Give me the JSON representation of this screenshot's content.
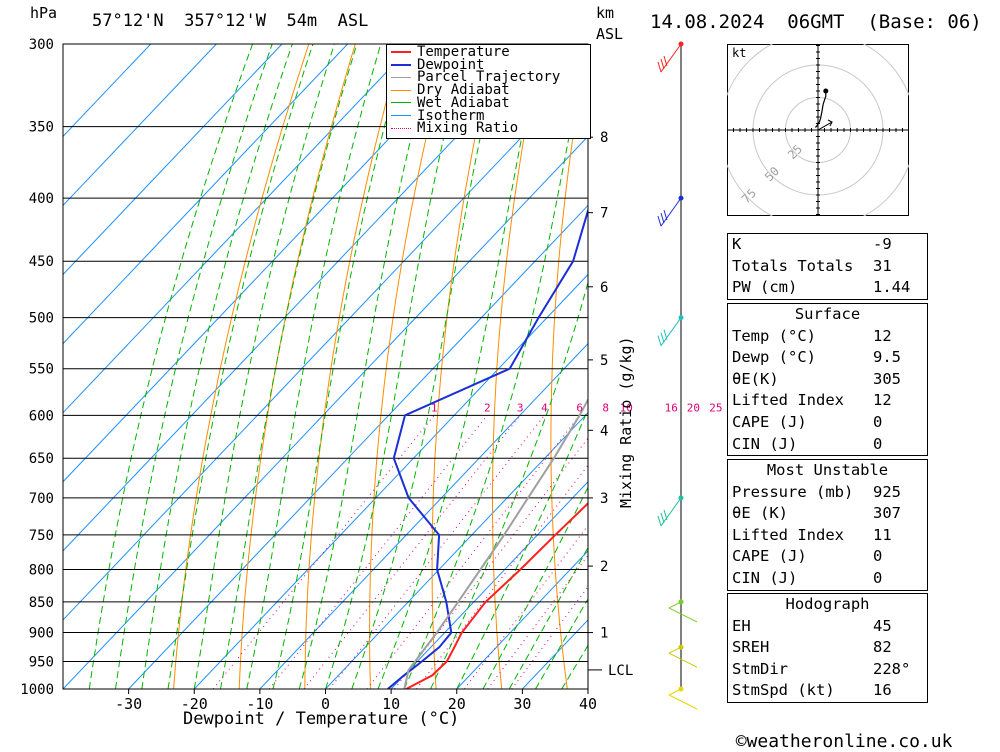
{
  "header": {
    "unit_left": "hPa",
    "location": "57°12'N  357°12'W  54m  ASL",
    "unit_km": "km",
    "unit_asl": "ASL",
    "datetime": "14.08.2024  06GMT  (Base: 06)"
  },
  "legend": [
    "Temperature",
    "Dewpoint",
    "Parcel Trajectory",
    "Dry Adiabat",
    "Wet Adiabat",
    "Isotherm",
    "Mixing Ratio"
  ],
  "colors": {
    "temperature": "#ff2020",
    "dewpoint": "#1a2fd6",
    "parcel": "#a0a0a0",
    "dry_adiabat": "#ff8c00",
    "wet_adiabat": "#00b400",
    "isotherm": "#1e90ff",
    "mixing_ratio": "#e0007a"
  },
  "chart_data": {
    "type": "line",
    "title": "57°12'N  357°12'W  54m  ASL",
    "xlabel": "Dewpoint / Temperature (°C)",
    "ylabel": "hPa",
    "xlim": [
      -40,
      40
    ],
    "ylim": [
      1000,
      300
    ],
    "x_ticks": [
      -30,
      -20,
      -10,
      0,
      10,
      20,
      30,
      40
    ],
    "pressure_levels": [
      300,
      350,
      400,
      450,
      500,
      550,
      600,
      650,
      700,
      750,
      800,
      850,
      900,
      950,
      1000
    ],
    "km_ticks": [
      {
        "label": "1",
        "p": 900
      },
      {
        "label": "2",
        "p": 795
      },
      {
        "label": "3",
        "p": 700
      },
      {
        "label": "4",
        "p": 617
      },
      {
        "label": "5",
        "p": 541
      },
      {
        "label": "6",
        "p": 472
      },
      {
        "label": "7",
        "p": 411
      },
      {
        "label": "8",
        "p": 357
      }
    ],
    "lcl": {
      "label": "LCL",
      "p": 965
    },
    "mixing_ratio_label": "Mixing Ratio (g/kg)",
    "mixing_ratio_values": [
      "1",
      "2",
      "3",
      "4",
      "6",
      "8",
      "10",
      "16",
      "20",
      "25"
    ],
    "series": [
      {
        "name": "Temperature",
        "points": [
          [
            1000,
            12.3
          ],
          [
            975,
            14.3
          ],
          [
            950,
            14.5
          ],
          [
            925,
            13.6
          ],
          [
            900,
            12.6
          ],
          [
            850,
            11.8
          ],
          [
            800,
            12.4
          ],
          [
            750,
            12.7
          ],
          [
            700,
            13.2
          ],
          [
            650,
            13.3
          ],
          [
            600,
            11.3
          ],
          [
            550,
            7.1
          ],
          [
            500,
            1.9
          ],
          [
            450,
            -4.1
          ],
          [
            400,
            -11.5
          ],
          [
            375,
            -15.0
          ],
          [
            350,
            -17.8
          ],
          [
            300,
            -25.0
          ]
        ]
      },
      {
        "name": "Dewpoint",
        "points": [
          [
            1000,
            9.5
          ],
          [
            975,
            10.0
          ],
          [
            950,
            10.7
          ],
          [
            925,
            11.3
          ],
          [
            900,
            11.0
          ],
          [
            850,
            5.8
          ],
          [
            800,
            -0.3
          ],
          [
            750,
            -5.0
          ],
          [
            700,
            -15.0
          ],
          [
            650,
            -23.0
          ],
          [
            600,
            -27.5
          ],
          [
            550,
            -18.3
          ],
          [
            500,
            -21.3
          ],
          [
            450,
            -24.2
          ],
          [
            400,
            -30.5
          ],
          [
            350,
            -29.5
          ],
          [
            300,
            -40.5
          ]
        ]
      },
      {
        "name": "Parcel Trajectory",
        "points": [
          [
            1000,
            12.0
          ],
          [
            965,
            9.9
          ],
          [
            900,
            8.8
          ],
          [
            850,
            7.6
          ],
          [
            800,
            6.3
          ],
          [
            750,
            4.9
          ],
          [
            700,
            3.2
          ],
          [
            650,
            1.4
          ],
          [
            600,
            -0.9
          ],
          [
            550,
            -3.8
          ],
          [
            500,
            -7.5
          ],
          [
            450,
            -12.0
          ],
          [
            400,
            -17.5
          ],
          [
            350,
            -24.0
          ],
          [
            300,
            -32.0
          ]
        ]
      }
    ]
  },
  "hodograph": {
    "unit": "kt",
    "ring_labels": [
      "25",
      "50",
      "75"
    ],
    "wind_kt": [
      [
        -2,
        2
      ],
      [
        -1,
        3
      ],
      [
        1,
        6
      ],
      [
        2,
        9
      ],
      [
        3,
        14
      ],
      [
        4,
        20
      ],
      [
        6,
        26
      ],
      [
        6,
        30
      ]
    ]
  },
  "wind_barbs": [
    {
      "p": 300,
      "color": "#ff2020"
    },
    {
      "p": 400,
      "color": "#1a2fd6"
    },
    {
      "p": 500,
      "color": "#20c0c0"
    },
    {
      "p": 700,
      "color": "#20c0a0"
    },
    {
      "p": 850,
      "color": "#7acc20"
    },
    {
      "p": 925,
      "color": "#c8c800"
    },
    {
      "p": 1000,
      "color": "#e8d800"
    }
  ],
  "indices": {
    "k_label": "K",
    "k_value": "-9",
    "tt_label": "Totals Totals",
    "tt_value": "31",
    "pw_label": "PW (cm)",
    "pw_value": "1.44"
  },
  "surface": {
    "title": "Surface",
    "rows": [
      {
        "label": "Temp (°C)",
        "value": "12"
      },
      {
        "label": "Dewp (°C)",
        "value": "9.5"
      },
      {
        "label": "θE(K)",
        "value": "305"
      },
      {
        "label": "Lifted Index",
        "value": "12"
      },
      {
        "label": "CAPE (J)",
        "value": "0"
      },
      {
        "label": "CIN (J)",
        "value": "0"
      }
    ]
  },
  "most_unstable": {
    "title": "Most Unstable",
    "rows": [
      {
        "label": "Pressure (mb)",
        "value": "925"
      },
      {
        "label": "θE (K)",
        "value": "307"
      },
      {
        "label": "Lifted Index",
        "value": "11"
      },
      {
        "label": "CAPE (J)",
        "value": "0"
      },
      {
        "label": "CIN (J)",
        "value": "0"
      }
    ]
  },
  "hodograph_table": {
    "title": "Hodograph",
    "rows": [
      {
        "label": "EH",
        "value": "45"
      },
      {
        "label": "SREH",
        "value": "82"
      },
      {
        "label": "StmDir",
        "value": "228°"
      },
      {
        "label": "StmSpd (kt)",
        "value": "16"
      }
    ]
  },
  "footer": {
    "copyright_symbol": "©",
    "site": "weatheronline.co.uk"
  }
}
